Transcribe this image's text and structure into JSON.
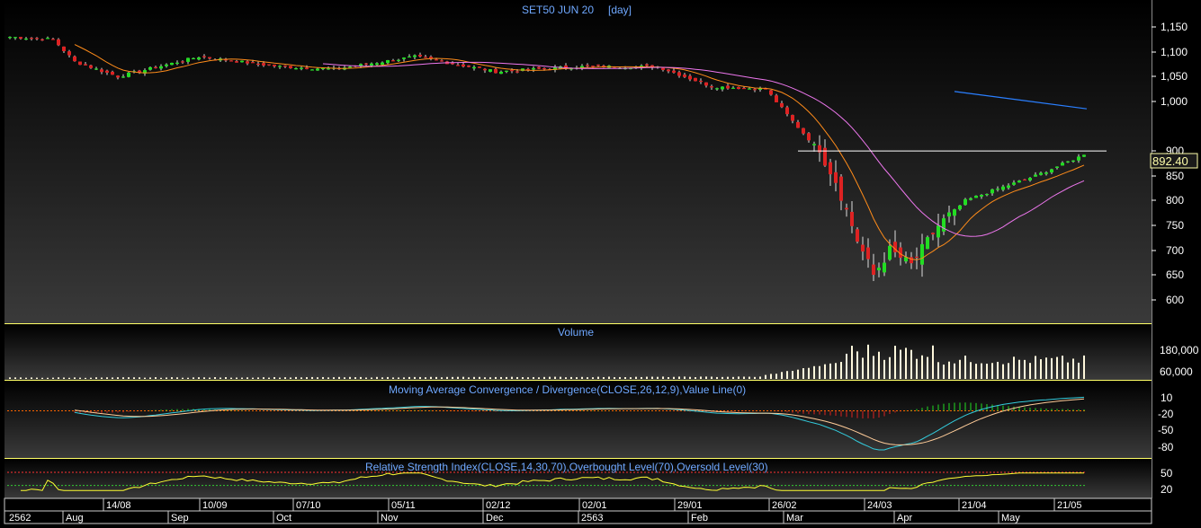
{
  "colors": {
    "background": "#000000",
    "panel_border": "#ffff66",
    "title": "#6fa8ff",
    "up_candle": "#22dd22",
    "down_candle": "#dd2222",
    "ma_fast": "#ff8c1a",
    "ma_slow": "#ee77ee",
    "trend_line": "#2a7fff",
    "last_price_bg": "#1a1a1a",
    "last_price_text": "#ffffaa",
    "macd_line": "#33ccdd",
    "signal_line": "#ffcc99",
    "rsi_line": "#ffff33",
    "volume_bar": "#fff8dc",
    "axis_text": "#ffffff"
  },
  "header": {
    "title": "SET50 JUN 20",
    "interval": "[day]"
  },
  "last_price": "892.40",
  "price_axis_ticks": [
    "1,150",
    "1,100",
    "1,050",
    "1,000",
    "900",
    "850",
    "800",
    "750",
    "700",
    "650",
    "600"
  ],
  "volume_panel": {
    "title": "Volume",
    "ticks": [
      "180,000",
      "60,000"
    ]
  },
  "macd_panel": {
    "title": "Moving Average Convergence / Divergence(CLOSE,26,12,9),Value Line(0)",
    "ticks": [
      "10",
      "-20",
      "-50",
      "-80"
    ]
  },
  "rsi_panel": {
    "title": "Relative Strength Index(CLOSE,14,30,70),Overbought Level(70),Oversold Level(30)",
    "ticks": [
      "50",
      "20"
    ]
  },
  "date_axis": {
    "day_labels": [
      "14/08",
      "10/09",
      "07/10",
      "05/11",
      "02/12",
      "02/01",
      "29/01",
      "26/02",
      "24/03",
      "21/04",
      "21/05"
    ],
    "period_labels": [
      "2562",
      "Aug",
      "Sep",
      "Oct",
      "Nov",
      "Dec",
      "2563",
      "Feb",
      "Mar",
      "Apr",
      "May"
    ]
  },
  "chart_data": {
    "type": "candlestick",
    "y_range": [
      600,
      1150
    ],
    "num_bars": 200,
    "price_anchors": [
      {
        "bar": 0,
        "close": 1130
      },
      {
        "bar": 8,
        "close": 1125
      },
      {
        "bar": 12,
        "close": 1080
      },
      {
        "bar": 20,
        "close": 1050
      },
      {
        "bar": 35,
        "close": 1090
      },
      {
        "bar": 50,
        "close": 1070
      },
      {
        "bar": 60,
        "close": 1065
      },
      {
        "bar": 75,
        "close": 1090
      },
      {
        "bar": 90,
        "close": 1060
      },
      {
        "bar": 105,
        "close": 1070
      },
      {
        "bar": 120,
        "close": 1070
      },
      {
        "bar": 130,
        "close": 1030
      },
      {
        "bar": 140,
        "close": 1025
      },
      {
        "bar": 145,
        "close": 960
      },
      {
        "bar": 150,
        "close": 900
      },
      {
        "bar": 153,
        "close": 840
      },
      {
        "bar": 157,
        "close": 720
      },
      {
        "bar": 160,
        "close": 650
      },
      {
        "bar": 163,
        "close": 700
      },
      {
        "bar": 167,
        "close": 670
      },
      {
        "bar": 172,
        "close": 750
      },
      {
        "bar": 177,
        "close": 800
      },
      {
        "bar": 182,
        "close": 820
      },
      {
        "bar": 190,
        "close": 850
      },
      {
        "bar": 199,
        "close": 892.4
      }
    ],
    "horizontal_line": 900,
    "trend_line": [
      {
        "bar": 175,
        "price": 1020
      },
      {
        "bar": 200,
        "price": 985
      }
    ],
    "volume_range": [
      0,
      240000
    ],
    "macd_range": [
      -95,
      25
    ],
    "rsi_range": [
      10,
      70
    ],
    "rsi_levels": [
      30,
      70
    ]
  }
}
